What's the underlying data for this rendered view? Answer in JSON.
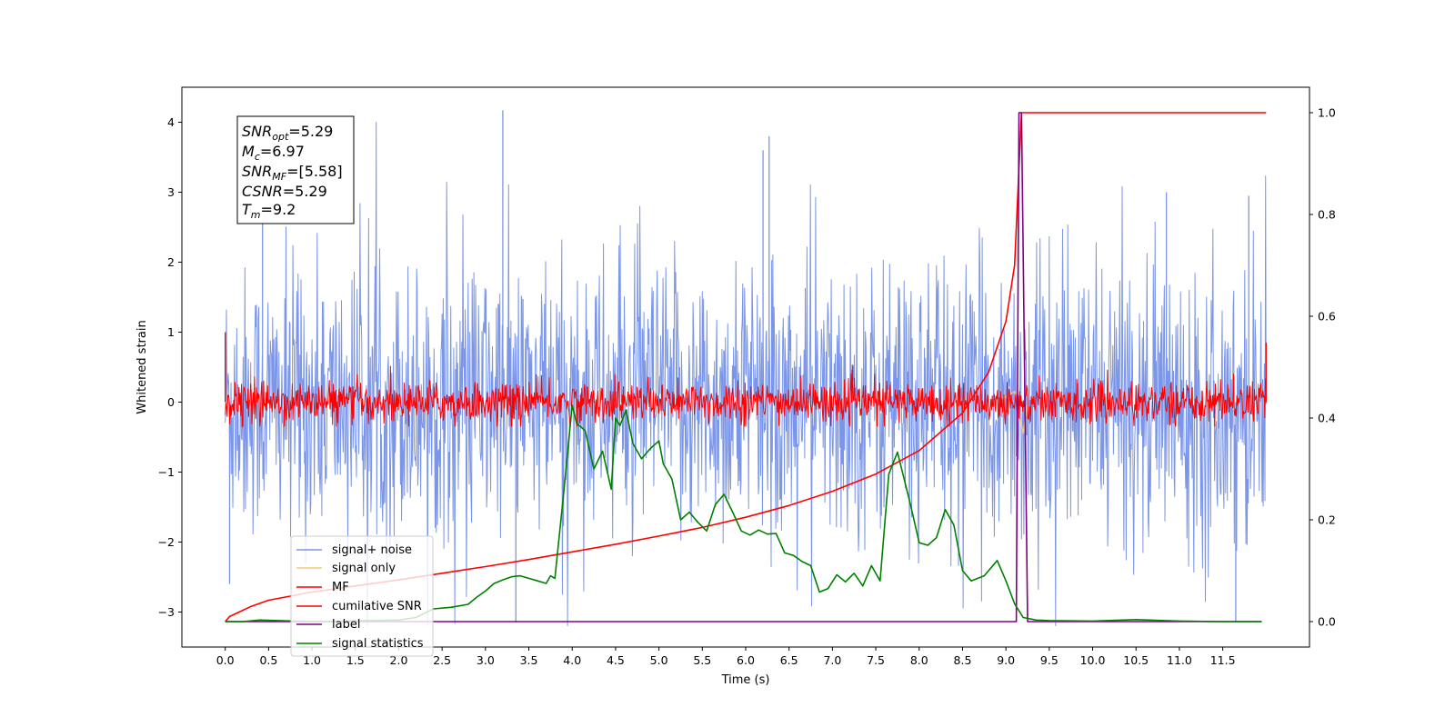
{
  "chart_data": {
    "type": "line",
    "xlabel": "Time (s)",
    "ylabel": "Whitened strain",
    "xlim": [
      -0.5,
      12.5
    ],
    "ylim": [
      -3.5,
      4.5
    ],
    "y2lim": [
      -0.05,
      1.05
    ],
    "x_ticks": [
      0.0,
      0.5,
      1.0,
      1.5,
      2.0,
      2.5,
      3.0,
      3.5,
      4.0,
      4.5,
      5.0,
      5.5,
      6.0,
      6.5,
      7.0,
      7.5,
      8.0,
      8.5,
      9.0,
      9.5,
      10.0,
      10.5,
      11.0,
      11.5
    ],
    "x_tick_labels": [
      "0.0",
      "0.5",
      "1.0",
      "1.5",
      "2.0",
      "2.5",
      "3.0",
      "3.5",
      "4.0",
      "4.5",
      "5.0",
      "5.5",
      "6.0",
      "6.5",
      "7.0",
      "7.5",
      "8.0",
      "8.5",
      "9.0",
      "9.5",
      "10.0",
      "10.5",
      "11.0",
      "11.5"
    ],
    "y_ticks": [
      -3,
      -2,
      -1,
      0,
      1,
      2,
      3,
      4
    ],
    "y_tick_labels": [
      "−3",
      "−2",
      "−1",
      "0",
      "1",
      "2",
      "3",
      "4"
    ],
    "y2_ticks": [
      0.0,
      0.2,
      0.4,
      0.6,
      0.8,
      1.0
    ],
    "y2_tick_labels": [
      "0.0",
      "0.2",
      "0.4",
      "0.6",
      "0.8",
      "1.0"
    ],
    "grid": false,
    "legend_position": "lower-left",
    "annotation": {
      "snr_opt": {
        "base": "SNR",
        "sub": "opt",
        "value": "=5.29"
      },
      "mc": {
        "base": "M",
        "sub": "c",
        "value": "=6.97"
      },
      "snr_mf": {
        "base": "SNR",
        "sub": "MF",
        "value": "=[5.58]"
      },
      "csnr": {
        "base": "CSNR",
        "value": "=5.29"
      },
      "tm": {
        "base": "T",
        "sub": "m",
        "value": "=9.2"
      }
    },
    "series": [
      {
        "name": "signal+ noise",
        "color": "#7b96e8",
        "axis": "left",
        "description": "whitened noise, spans 0.0 to 12.0 s",
        "envelope": {
          "x": [
            0.0,
            12.0
          ],
          "core_min": -1.7,
          "core_max": 1.6,
          "peak_min": -3.2,
          "peak_max": 4.17
        },
        "spikes": [
          {
            "x": 3.2,
            "y": 4.17
          },
          {
            "x": 6.27,
            "y": 3.8
          },
          {
            "x": 6.2,
            "y": 3.6
          },
          {
            "x": 0.43,
            "y": 3.1
          },
          {
            "x": 3.35,
            "y": -3.15
          },
          {
            "x": 11.65,
            "y": -3.15
          },
          {
            "x": 11.8,
            "y": 2.95
          },
          {
            "x": 10.85,
            "y": 3.0
          },
          {
            "x": 0.05,
            "y": -2.6
          }
        ]
      },
      {
        "name": "signal only",
        "color": "#f5c87a",
        "axis": "left",
        "description": "chirp waveform, merger near 9.2 s",
        "points": [
          [
            8.9,
            0.0
          ],
          [
            9.1,
            0.15
          ],
          [
            9.2,
            -0.45
          ],
          [
            9.25,
            0.0
          ]
        ]
      },
      {
        "name": "MF",
        "color": "#ff0000",
        "axis": "left",
        "description": "matched filter output, spans 0.0 to 12.0 s",
        "envelope": {
          "x": [
            0.0,
            12.0
          ],
          "core_min": -0.3,
          "core_max": 0.35,
          "peak_min": -0.35,
          "peak_max": 0.65
        },
        "spikes": [
          {
            "x": 0.0,
            "y": 1.0
          },
          {
            "x": 12.0,
            "y": 0.85
          }
        ]
      },
      {
        "name": "cumilative SNR",
        "color": "#ff0000",
        "axis": "right",
        "points": [
          [
            0.0,
            0.0
          ],
          [
            0.05,
            0.01
          ],
          [
            0.3,
            0.03
          ],
          [
            0.5,
            0.042
          ],
          [
            1.0,
            0.058
          ],
          [
            1.5,
            0.07
          ],
          [
            2.0,
            0.082
          ],
          [
            2.5,
            0.095
          ],
          [
            3.0,
            0.108
          ],
          [
            3.5,
            0.122
          ],
          [
            4.0,
            0.137
          ],
          [
            4.5,
            0.152
          ],
          [
            5.0,
            0.168
          ],
          [
            5.5,
            0.185
          ],
          [
            6.0,
            0.205
          ],
          [
            6.5,
            0.228
          ],
          [
            7.0,
            0.256
          ],
          [
            7.5,
            0.29
          ],
          [
            8.0,
            0.336
          ],
          [
            8.5,
            0.41
          ],
          [
            8.8,
            0.49
          ],
          [
            9.0,
            0.59
          ],
          [
            9.1,
            0.7
          ],
          [
            9.18,
            1.0
          ],
          [
            12.0,
            1.0
          ]
        ]
      },
      {
        "name": "label",
        "color": "#800080",
        "axis": "right",
        "points": [
          [
            0.0,
            0.0
          ],
          [
            9.12,
            0.0
          ],
          [
            9.15,
            1.0
          ],
          [
            9.18,
            1.0
          ],
          [
            9.25,
            0.0
          ],
          [
            11.95,
            0.0
          ]
        ]
      },
      {
        "name": "signal statistics",
        "color": "#008000",
        "axis": "right",
        "points": [
          [
            0.0,
            0.0
          ],
          [
            0.2,
            0.0
          ],
          [
            0.4,
            0.003
          ],
          [
            0.8,
            0.001
          ],
          [
            1.2,
            0.0
          ],
          [
            1.6,
            0.002
          ],
          [
            2.0,
            0.003
          ],
          [
            2.2,
            0.008
          ],
          [
            2.4,
            0.025
          ],
          [
            2.6,
            0.028
          ],
          [
            2.8,
            0.034
          ],
          [
            2.9,
            0.048
          ],
          [
            3.0,
            0.06
          ],
          [
            3.1,
            0.075
          ],
          [
            3.2,
            0.082
          ],
          [
            3.3,
            0.088
          ],
          [
            3.4,
            0.09
          ],
          [
            3.5,
            0.085
          ],
          [
            3.6,
            0.08
          ],
          [
            3.7,
            0.075
          ],
          [
            3.75,
            0.09
          ],
          [
            3.8,
            0.085
          ],
          [
            3.9,
            0.25
          ],
          [
            4.0,
            0.425
          ],
          [
            4.05,
            0.39
          ],
          [
            4.15,
            0.375
          ],
          [
            4.25,
            0.3
          ],
          [
            4.35,
            0.335
          ],
          [
            4.45,
            0.26
          ],
          [
            4.5,
            0.4
          ],
          [
            4.55,
            0.385
          ],
          [
            4.62,
            0.415
          ],
          [
            4.7,
            0.35
          ],
          [
            4.8,
            0.32
          ],
          [
            4.9,
            0.34
          ],
          [
            5.0,
            0.355
          ],
          [
            5.05,
            0.31
          ],
          [
            5.15,
            0.28
          ],
          [
            5.25,
            0.2
          ],
          [
            5.35,
            0.215
          ],
          [
            5.45,
            0.195
          ],
          [
            5.55,
            0.178
          ],
          [
            5.65,
            0.23
          ],
          [
            5.75,
            0.25
          ],
          [
            5.85,
            0.215
          ],
          [
            5.95,
            0.178
          ],
          [
            6.05,
            0.17
          ],
          [
            6.15,
            0.18
          ],
          [
            6.25,
            0.172
          ],
          [
            6.35,
            0.173
          ],
          [
            6.45,
            0.135
          ],
          [
            6.55,
            0.13
          ],
          [
            6.65,
            0.118
          ],
          [
            6.75,
            0.11
          ],
          [
            6.85,
            0.058
          ],
          [
            6.95,
            0.065
          ],
          [
            7.05,
            0.092
          ],
          [
            7.15,
            0.078
          ],
          [
            7.25,
            0.095
          ],
          [
            7.35,
            0.07
          ],
          [
            7.45,
            0.11
          ],
          [
            7.55,
            0.08
          ],
          [
            7.65,
            0.29
          ],
          [
            7.75,
            0.333
          ],
          [
            7.9,
            0.23
          ],
          [
            8.0,
            0.155
          ],
          [
            8.1,
            0.15
          ],
          [
            8.2,
            0.165
          ],
          [
            8.3,
            0.22
          ],
          [
            8.4,
            0.19
          ],
          [
            8.5,
            0.1
          ],
          [
            8.6,
            0.08
          ],
          [
            8.75,
            0.09
          ],
          [
            8.9,
            0.12
          ],
          [
            9.0,
            0.08
          ],
          [
            9.1,
            0.035
          ],
          [
            9.2,
            0.008
          ],
          [
            9.35,
            0.003
          ],
          [
            9.5,
            0.002
          ],
          [
            10.0,
            0.001
          ],
          [
            10.5,
            0.004
          ],
          [
            11.0,
            0.001
          ],
          [
            11.5,
            0.0
          ],
          [
            11.95,
            0.0
          ]
        ]
      }
    ]
  }
}
